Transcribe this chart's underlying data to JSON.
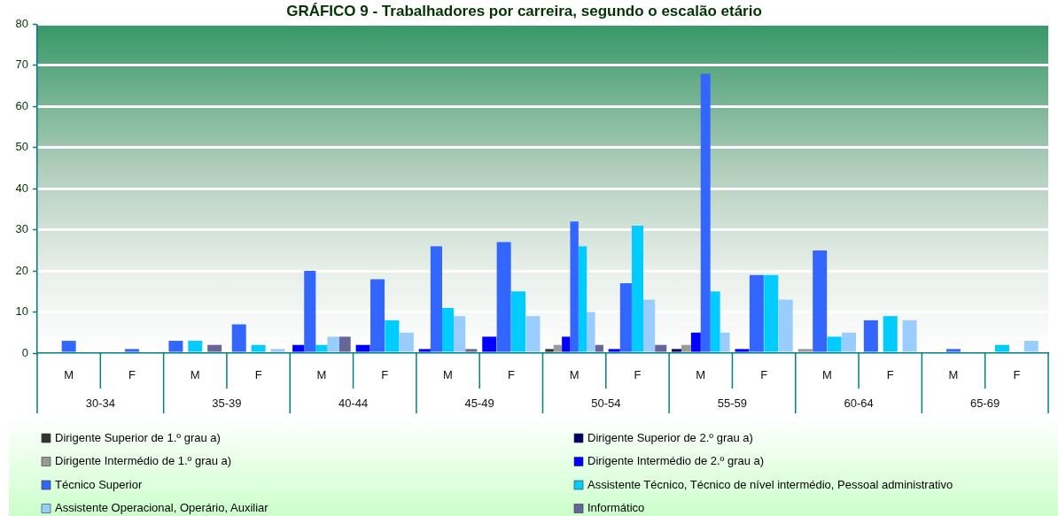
{
  "chart_data": {
    "type": "bar",
    "title": "GRÁFICO 9 - Trabalhadores por carreira, segundo o escalão etário",
    "categories": [
      "M",
      "F",
      "M",
      "F",
      "M",
      "F",
      "M",
      "F",
      "M",
      "F",
      "M",
      "F",
      "M",
      "F",
      "M",
      "F"
    ],
    "annotations": [
      "30-34",
      "35-39",
      "40-44",
      "45-49",
      "50-54",
      "55-59",
      "60-64",
      "65-69"
    ],
    "series": [
      {
        "name": "Dirigente Superior de 1.º grau a)",
        "color": "#333333",
        "values": [
          null,
          null,
          null,
          null,
          null,
          null,
          null,
          null,
          1,
          null,
          null,
          null,
          null,
          null,
          null,
          null
        ]
      },
      {
        "name": "Dirigente Superior de 2.º grau a)",
        "color": "#000066",
        "values": [
          null,
          null,
          null,
          null,
          null,
          null,
          null,
          null,
          null,
          null,
          1,
          null,
          null,
          null,
          null,
          null
        ]
      },
      {
        "name": "Dirigente Intermédio de 1.º grau a)",
        "color": "#999999",
        "values": [
          null,
          null,
          null,
          null,
          null,
          null,
          null,
          null,
          2,
          null,
          2,
          null,
          1,
          null,
          null,
          null
        ]
      },
      {
        "name": "Dirigente Intermédio de 2.º grau a)",
        "color": "#0000ff",
        "values": [
          null,
          null,
          null,
          null,
          2,
          2,
          1,
          4,
          4,
          1,
          5,
          1,
          null,
          null,
          null,
          null
        ]
      },
      {
        "name": "Técnico Superior",
        "color": "#3366ff",
        "values": [
          3,
          1,
          3,
          7,
          20,
          18,
          26,
          27,
          32,
          17,
          68,
          19,
          25,
          8,
          1,
          null
        ]
      },
      {
        "name": "Assistente Técnico, Técnico de nível intermédio, Pessoal administrativo",
        "color": "#00ccff",
        "values": [
          null,
          null,
          3,
          2,
          2,
          8,
          11,
          15,
          26,
          31,
          15,
          19,
          4,
          9,
          null,
          2
        ]
      },
      {
        "name": "Assistente Operacional, Operário, Auxiliar",
        "color": "#99ccff",
        "values": [
          null,
          null,
          null,
          1,
          4,
          5,
          9,
          9,
          10,
          13,
          5,
          13,
          5,
          8,
          null,
          3
        ]
      },
      {
        "name": "Informático",
        "color": "#666699",
        "values": [
          null,
          null,
          2,
          null,
          4,
          null,
          1,
          null,
          2,
          2,
          null,
          null,
          null,
          null,
          null,
          null
        ]
      }
    ],
    "ylim": [
      0,
      80
    ],
    "yticks": [
      0,
      10,
      20,
      30,
      40,
      50,
      60,
      70,
      80
    ],
    "grid": "y",
    "legend": "bottom"
  }
}
